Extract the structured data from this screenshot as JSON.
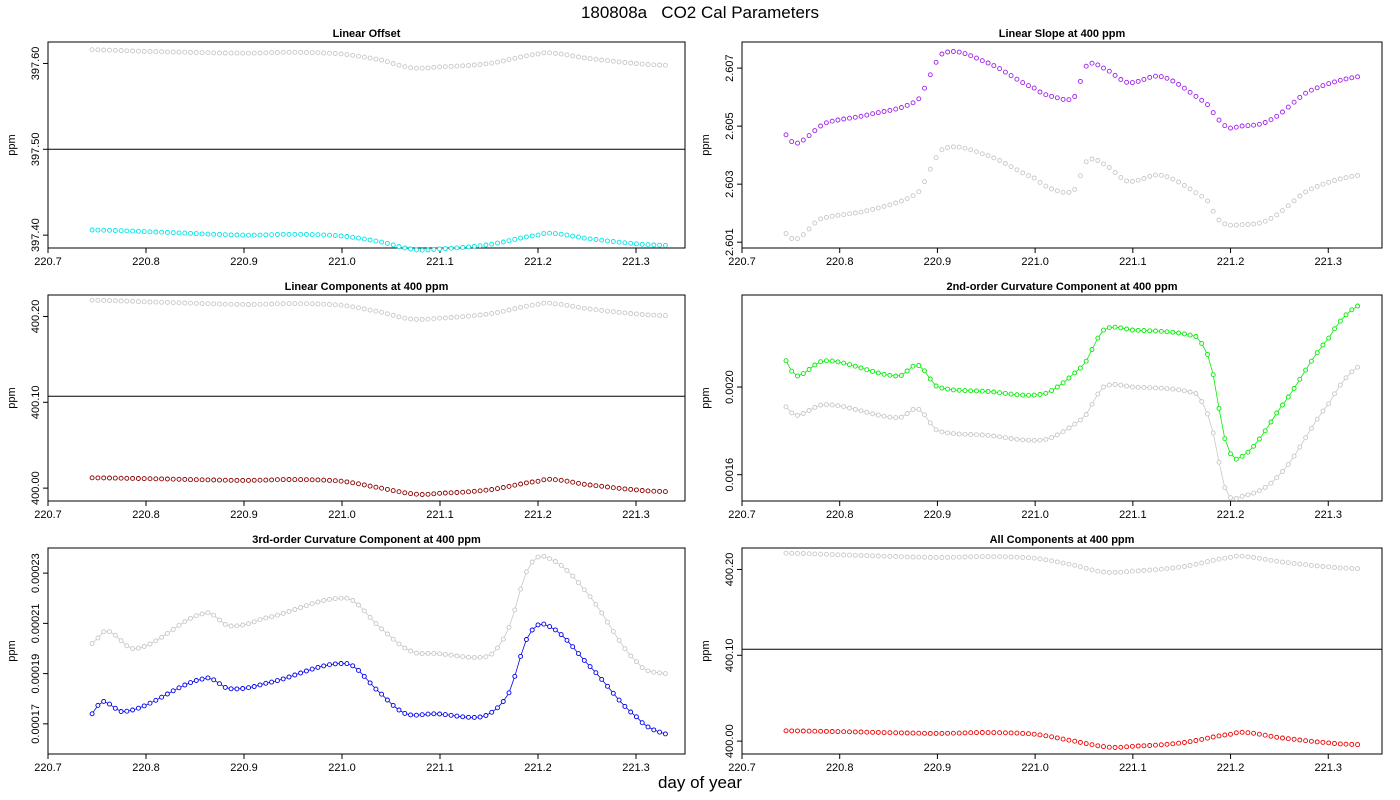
{
  "figure": {
    "title": "180808a   CO2 Cal Parameters",
    "xlabel": "day of year"
  },
  "chart_data": [
    {
      "type": "scatter",
      "title": "Linear Offset",
      "ylabel": "ppm",
      "xlim": [
        220.7,
        221.35
      ],
      "ylim": [
        397.385,
        397.625
      ],
      "xticks": [
        "220.7",
        "220.8",
        "220.9",
        "221.0",
        "221.1",
        "221.2",
        "221.3"
      ],
      "yticks": [
        "397.40",
        "397.50",
        "397.60"
      ],
      "hline": 397.5,
      "x_range": [
        220.745,
        221.33
      ],
      "line_series": [
        {
          "color": "#c8c8c8",
          "connect": false,
          "knots": [
            [
              220.745,
              397.616
            ],
            [
              220.8,
              397.614
            ],
            [
              220.9,
              397.612
            ],
            [
              220.95,
              397.613
            ],
            [
              221.0,
              397.611
            ],
            [
              221.04,
              397.604
            ],
            [
              221.07,
              397.595
            ],
            [
              221.1,
              397.596
            ],
            [
              221.15,
              397.6
            ],
            [
              221.2,
              397.611
            ],
            [
              221.215,
              397.612
            ],
            [
              221.25,
              397.606
            ],
            [
              221.3,
              397.6
            ],
            [
              221.33,
              397.598
            ]
          ]
        },
        {
          "color": "#00e5e5",
          "connect": false,
          "knots": [
            [
              220.745,
              397.406
            ],
            [
              220.8,
              397.404
            ],
            [
              220.9,
              397.4
            ],
            [
              220.95,
              397.401
            ],
            [
              221.0,
              397.399
            ],
            [
              221.04,
              397.392
            ],
            [
              221.075,
              397.383
            ],
            [
              221.1,
              397.384
            ],
            [
              221.15,
              397.389
            ],
            [
              221.2,
              397.4
            ],
            [
              221.215,
              397.402
            ],
            [
              221.25,
              397.396
            ],
            [
              221.3,
              397.39
            ],
            [
              221.33,
              397.388
            ]
          ]
        }
      ]
    },
    {
      "type": "scatter",
      "title": "Linear Slope at 400 ppm",
      "ylabel": "ppm",
      "xlim": [
        220.7,
        221.355
      ],
      "ylim": [
        2.6008,
        2.6079
      ],
      "xticks": [
        "220.7",
        "220.8",
        "220.9",
        "221.0",
        "221.1",
        "221.2",
        "221.3"
      ],
      "yticks": [
        "2.601",
        "2.603",
        "2.605",
        "2.607"
      ],
      "hline": null,
      "x_range": [
        220.745,
        221.33
      ],
      "line_series": [
        {
          "color": "#c8c8c8",
          "connect": false,
          "knots": [
            [
              220.745,
              2.6013
            ],
            [
              220.755,
              2.6011
            ],
            [
              220.78,
              2.6018
            ],
            [
              220.83,
              2.6021
            ],
            [
              220.88,
              2.6027
            ],
            [
              220.905,
              2.6042
            ],
            [
              220.95,
              2.604
            ],
            [
              221.0,
              2.6032
            ],
            [
              221.02,
              2.6028
            ],
            [
              221.04,
              2.6028
            ],
            [
              221.053,
              2.6038
            ],
            [
              221.07,
              2.6037
            ],
            [
              221.095,
              2.6031
            ],
            [
              221.13,
              2.6033
            ],
            [
              221.175,
              2.6025
            ],
            [
              221.19,
              2.6017
            ],
            [
              221.21,
              2.6016
            ],
            [
              221.24,
              2.6018
            ],
            [
              221.28,
              2.6028
            ],
            [
              221.33,
              2.6033
            ]
          ]
        },
        {
          "color": "#a020f0",
          "connect": false,
          "knots": [
            [
              220.745,
              2.6047
            ],
            [
              220.755,
              2.6044
            ],
            [
              220.785,
              2.6051
            ],
            [
              220.83,
              2.6054
            ],
            [
              220.88,
              2.6059
            ],
            [
              220.905,
              2.6075
            ],
            [
              220.95,
              2.6072
            ],
            [
              221.0,
              2.6063
            ],
            [
              221.02,
              2.606
            ],
            [
              221.04,
              2.606
            ],
            [
              221.053,
              2.6071
            ],
            [
              221.07,
              2.607
            ],
            [
              221.095,
              2.6065
            ],
            [
              221.13,
              2.6067
            ],
            [
              221.175,
              2.6058
            ],
            [
              221.195,
              2.605
            ],
            [
              221.21,
              2.605
            ],
            [
              221.24,
              2.6052
            ],
            [
              221.28,
              2.6062
            ],
            [
              221.33,
              2.6067
            ]
          ]
        }
      ]
    },
    {
      "type": "scatter",
      "title": "Linear Components at 400 ppm",
      "ylabel": "ppm",
      "xlim": [
        220.7,
        221.35
      ],
      "ylim": [
        399.985,
        400.225
      ],
      "xticks": [
        "220.7",
        "220.8",
        "220.9",
        "221.0",
        "221.1",
        "221.2",
        "221.3"
      ],
      "yticks": [
        "400.00",
        "400.10",
        "400.20"
      ],
      "hline": 400.107,
      "x_range": [
        220.745,
        221.33
      ],
      "line_series": [
        {
          "color": "#c8c8c8",
          "connect": false,
          "knots": [
            [
              220.745,
              400.219
            ],
            [
              220.8,
              400.217
            ],
            [
              220.9,
              400.214
            ],
            [
              220.95,
              400.215
            ],
            [
              221.0,
              400.213
            ],
            [
              221.04,
              400.205
            ],
            [
              221.07,
              400.197
            ],
            [
              221.1,
              400.198
            ],
            [
              221.15,
              400.203
            ],
            [
              221.2,
              400.214
            ],
            [
              221.215,
              400.215
            ],
            [
              221.25,
              400.209
            ],
            [
              221.3,
              400.203
            ],
            [
              221.33,
              400.201
            ]
          ]
        },
        {
          "color": "#8b0000",
          "connect": false,
          "knots": [
            [
              220.745,
              400.012
            ],
            [
              220.8,
              400.011
            ],
            [
              220.9,
              400.009
            ],
            [
              220.95,
              400.01
            ],
            [
              221.0,
              400.008
            ],
            [
              221.04,
              400.0
            ],
            [
              221.075,
              399.993
            ],
            [
              221.1,
              399.994
            ],
            [
              221.15,
              399.998
            ],
            [
              221.2,
              400.008
            ],
            [
              221.215,
              400.01
            ],
            [
              221.25,
              400.004
            ],
            [
              221.3,
              399.998
            ],
            [
              221.33,
              399.996
            ]
          ]
        }
      ]
    },
    {
      "type": "scatter",
      "title": "2nd-order Curvature Component at 400 ppm",
      "ylabel": "ppm",
      "xlim": [
        220.7,
        221.355
      ],
      "ylim": [
        0.00148,
        0.00242
      ],
      "xticks": [
        "220.7",
        "220.8",
        "220.9",
        "221.0",
        "221.1",
        "221.2",
        "221.3"
      ],
      "yticks": [
        "0.0016",
        "0.0020"
      ],
      "hline": null,
      "x_range": [
        220.745,
        221.33
      ],
      "line_series": [
        {
          "color": "#c8c8c8",
          "connect": true,
          "knots": [
            [
              220.745,
              0.00191
            ],
            [
              220.755,
              0.00187
            ],
            [
              220.785,
              0.00192
            ],
            [
              220.86,
              0.00186
            ],
            [
              220.88,
              0.0019
            ],
            [
              220.9,
              0.0018
            ],
            [
              220.95,
              0.00178
            ],
            [
              221.01,
              0.00176
            ],
            [
              221.05,
              0.00186
            ],
            [
              221.07,
              0.002
            ],
            [
              221.1,
              0.002
            ],
            [
              221.165,
              0.00197
            ],
            [
              221.18,
              0.00183
            ],
            [
              221.195,
              0.00153
            ],
            [
              221.21,
              0.0015
            ],
            [
              221.25,
              0.0016
            ],
            [
              221.3,
              0.00192
            ],
            [
              221.33,
              0.00209
            ]
          ]
        },
        {
          "color": "#00ee00",
          "connect": true,
          "knots": [
            [
              220.745,
              0.00212
            ],
            [
              220.755,
              0.00205
            ],
            [
              220.785,
              0.00212
            ],
            [
              220.86,
              0.00205
            ],
            [
              220.88,
              0.0021
            ],
            [
              220.9,
              0.002
            ],
            [
              220.95,
              0.00198
            ],
            [
              221.01,
              0.00197
            ],
            [
              221.05,
              0.0021
            ],
            [
              221.07,
              0.00226
            ],
            [
              221.1,
              0.00226
            ],
            [
              221.165,
              0.00223
            ],
            [
              221.18,
              0.0021
            ],
            [
              221.195,
              0.00175
            ],
            [
              221.21,
              0.00168
            ],
            [
              221.25,
              0.0019
            ],
            [
              221.3,
              0.00222
            ],
            [
              221.33,
              0.00237
            ]
          ]
        }
      ]
    },
    {
      "type": "scatter",
      "title": "3rd-order Curvature Component at 400 ppm",
      "ylabel": "ppm",
      "xlim": [
        220.7,
        221.35
      ],
      "ylim": [
        0.000158,
        0.00024
      ],
      "xticks": [
        "220.7",
        "220.8",
        "220.9",
        "221.0",
        "221.1",
        "221.2",
        "221.3"
      ],
      "yticks": [
        "0.00017",
        "0.00019",
        "0.00021",
        "0.00023"
      ],
      "hline": null,
      "x_range": [
        220.745,
        221.33
      ],
      "line_series": [
        {
          "color": "#c8c8c8",
          "connect": true,
          "knots": [
            [
              220.745,
              0.000202
            ],
            [
              220.76,
              0.000207
            ],
            [
              220.79,
              0.0002
            ],
            [
              220.86,
              0.000214
            ],
            [
              220.885,
              0.000209
            ],
            [
              220.92,
              0.000212
            ],
            [
              221.005,
              0.00022
            ],
            [
              221.04,
              0.000208
            ],
            [
              221.07,
              0.000199
            ],
            [
              221.095,
              0.000198
            ],
            [
              221.15,
              0.000197
            ],
            [
              221.17,
              0.000208
            ],
            [
              221.19,
              0.000232
            ],
            [
              221.21,
              0.000236
            ],
            [
              221.25,
              0.000222
            ],
            [
              221.3,
              0.000195
            ],
            [
              221.33,
              0.00019
            ]
          ]
        },
        {
          "color": "#0000ee",
          "connect": true,
          "knots": [
            [
              220.745,
              0.000174
            ],
            [
              220.755,
              0.000179
            ],
            [
              220.78,
              0.000175
            ],
            [
              220.86,
              0.000188
            ],
            [
              220.885,
              0.000184
            ],
            [
              220.92,
              0.000186
            ],
            [
              221.005,
              0.000194
            ],
            [
              221.04,
              0.000182
            ],
            [
              221.065,
              0.000174
            ],
            [
              221.095,
              0.000174
            ],
            [
              221.145,
              0.000173
            ],
            [
              221.17,
              0.000182
            ],
            [
              221.19,
              0.000205
            ],
            [
              221.21,
              0.000209
            ],
            [
              221.25,
              0.000194
            ],
            [
              221.3,
              0.000173
            ],
            [
              221.33,
              0.000166
            ]
          ]
        }
      ]
    },
    {
      "type": "scatter",
      "title": "All Components at 400 ppm",
      "ylabel": "ppm",
      "xlim": [
        220.7,
        221.355
      ],
      "ylim": [
        399.985,
        400.225
      ],
      "xticks": [
        "220.7",
        "220.8",
        "220.9",
        "221.0",
        "221.1",
        "221.2",
        "221.3"
      ],
      "yticks": [
        "400.00",
        "400.10",
        "400.20"
      ],
      "hline": 400.107,
      "x_range": [
        220.745,
        221.33
      ],
      "line_series": [
        {
          "color": "#c8c8c8",
          "connect": false,
          "knots": [
            [
              220.745,
              400.219
            ],
            [
              220.8,
              400.217
            ],
            [
              220.9,
              400.214
            ],
            [
              220.95,
              400.215
            ],
            [
              221.0,
              400.213
            ],
            [
              221.04,
              400.205
            ],
            [
              221.07,
              400.197
            ],
            [
              221.1,
              400.198
            ],
            [
              221.15,
              400.203
            ],
            [
              221.2,
              400.214
            ],
            [
              221.215,
              400.215
            ],
            [
              221.25,
              400.209
            ],
            [
              221.3,
              400.203
            ],
            [
              221.33,
              400.201
            ]
          ]
        },
        {
          "color": "#ee0000",
          "connect": false,
          "knots": [
            [
              220.745,
              400.012
            ],
            [
              220.8,
              400.011
            ],
            [
              220.9,
              400.009
            ],
            [
              220.95,
              400.01
            ],
            [
              221.0,
              400.008
            ],
            [
              221.04,
              400.0
            ],
            [
              221.075,
              399.993
            ],
            [
              221.1,
              399.994
            ],
            [
              221.15,
              399.998
            ],
            [
              221.2,
              400.008
            ],
            [
              221.215,
              400.01
            ],
            [
              221.25,
              400.004
            ],
            [
              221.3,
              399.998
            ],
            [
              221.33,
              399.996
            ]
          ]
        }
      ]
    }
  ]
}
